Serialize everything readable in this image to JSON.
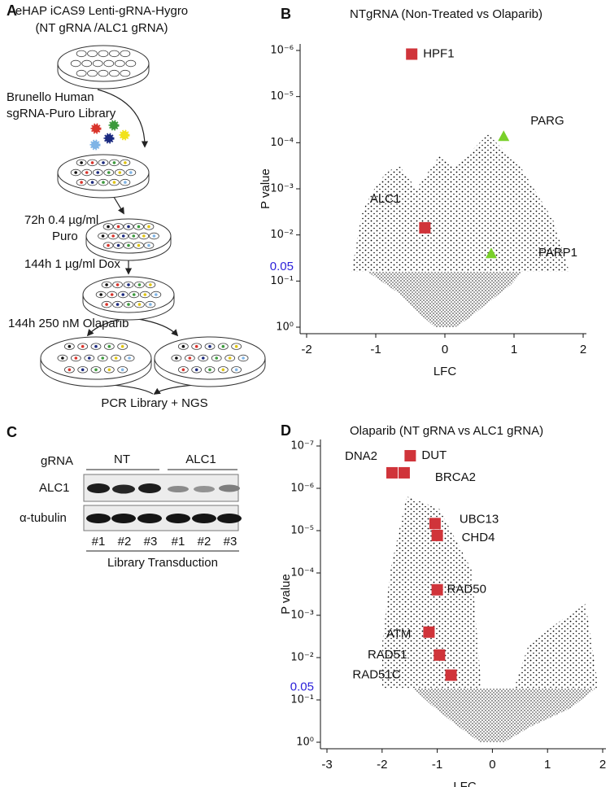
{
  "panel_a": {
    "letter": "A",
    "header": [
      "eHAP iCAS9 Lenti-gRNA-Hygro",
      "(NT gRNA /ALC1 gRNA)"
    ],
    "library": [
      "Brunello Human",
      "sgRNA-Puro Library"
    ],
    "step_puro": [
      "72h 0.4 µg/ml",
      "Puro"
    ],
    "step_dox": "144h 1 µg/ml Dox",
    "step_olaparib": "144h 250 nM Olaparib",
    "readout": "PCR Library + NGS"
  },
  "panel_c": {
    "letter": "C",
    "gRNA_label": "gRNA",
    "groups": [
      "NT",
      "ALC1"
    ],
    "rows": [
      "ALC1",
      "α-tubulin"
    ],
    "lanes": [
      "#1",
      "#2",
      "#3",
      "#1",
      "#2",
      "#3"
    ],
    "footer": "Library Transduction"
  },
  "chart_data": [
    {
      "type": "scatter",
      "letter": "B",
      "title": "NTgRNA (Non-Treated vs Olaparib)",
      "xlabel": "LFC",
      "ylabel": "P value",
      "xlim": [
        -2,
        2
      ],
      "xticks": [
        -2,
        -1,
        0,
        1,
        2
      ],
      "ylim": [
        1e-06,
        1
      ],
      "yscale": "log",
      "yreverse": true,
      "yticks": [
        {
          "value": 1e-06,
          "label": "10⁻⁶"
        },
        {
          "value": 1e-05,
          "label": "10⁻⁵"
        },
        {
          "value": 0.0001,
          "label": "10⁻⁴"
        },
        {
          "value": 0.001,
          "label": "10⁻³"
        },
        {
          "value": 0.01,
          "label": "10⁻²"
        },
        {
          "value": 0.1,
          "label": "10⁻¹"
        },
        {
          "value": 1,
          "label": "10⁰"
        }
      ],
      "threshold": {
        "value": 0.05,
        "color": "#2a1fd8"
      },
      "series": [
        {
          "marker": "square",
          "color": "#d0343a",
          "x": [
            -0.48,
            -0.29
          ],
          "values": [
            1.2e-06,
            0.007
          ],
          "labels": [
            "HPF1",
            "ALC1"
          ]
        },
        {
          "marker": "triangle",
          "color": "#79d02a",
          "x": [
            0.85,
            0.67
          ],
          "values": [
            7.2e-05,
            0.025
          ],
          "labels": [
            "PARG",
            "PARP1"
          ]
        }
      ]
    },
    {
      "type": "scatter",
      "letter": "D",
      "title": "Olaparib (NT gRNA vs ALC1 gRNA)",
      "xlabel": "LFC",
      "ylabel": "P value",
      "xlim": [
        -3,
        2
      ],
      "xticks": [
        -3,
        -2,
        -1,
        0,
        1,
        2
      ],
      "ylim": [
        1e-07,
        1
      ],
      "yscale": "log",
      "yreverse": true,
      "yticks": [
        {
          "value": 1e-07,
          "label": "10⁻⁷"
        },
        {
          "value": 1e-06,
          "label": "10⁻⁶"
        },
        {
          "value": 1e-05,
          "label": "10⁻⁵"
        },
        {
          "value": 0.0001,
          "label": "10⁻⁴"
        },
        {
          "value": 0.001,
          "label": "10⁻³"
        },
        {
          "value": 0.01,
          "label": "10⁻²"
        },
        {
          "value": 0.1,
          "label": "10⁻¹"
        },
        {
          "value": 1,
          "label": "10⁰"
        }
      ],
      "threshold": {
        "value": 0.05,
        "color": "#2a1fd8"
      },
      "series": [
        {
          "marker": "square",
          "color": "#d0343a",
          "x": [
            -1.49,
            -1.82,
            -1.6,
            -1.04,
            -1.0,
            -1.0,
            -1.15,
            -0.96,
            -0.75
          ],
          "values": [
            1.7e-07,
            4.3e-07,
            4.3e-07,
            6.8e-06,
            1.3e-05,
            0.00025,
            0.0025,
            0.0087,
            0.026
          ],
          "labels": [
            "DUT",
            "DNA2",
            "BRCA2",
            "UBC13",
            "CHD4",
            "RAD50",
            "ATM",
            "RAD51",
            "RAD51C"
          ]
        }
      ]
    }
  ]
}
